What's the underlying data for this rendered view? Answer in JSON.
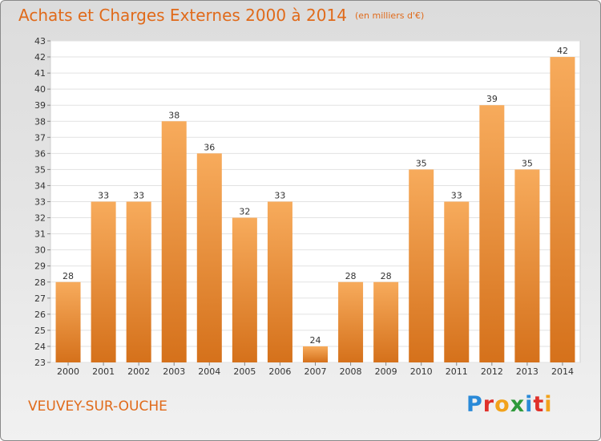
{
  "header": {
    "title": "Achats et Charges Externes 2000 à 2014",
    "unit": "(en milliers d'€)"
  },
  "place": "VEUVEY-SUR-OUCHE",
  "logo": {
    "text": "Proxiti",
    "colors": [
      "#2a8ad8",
      "#e0302a",
      "#f2a21b",
      "#2e9a3a",
      "#2a8ad8",
      "#e0302a",
      "#f2a21b"
    ]
  },
  "colors": {
    "accent": "#e06a1a",
    "bar_light": "#f6a95a",
    "bar_dark": "#d7731c"
  },
  "chart_data": {
    "type": "bar",
    "title": "Achats et Charges Externes 2000 à 2014",
    "subtitle": "(en milliers d'€)",
    "categories": [
      "2000",
      "2001",
      "2002",
      "2003",
      "2004",
      "2005",
      "2006",
      "2007",
      "2008",
      "2009",
      "2010",
      "2011",
      "2012",
      "2013",
      "2014"
    ],
    "values": [
      28,
      33,
      33,
      38,
      36,
      32,
      33,
      24,
      28,
      28,
      35,
      33,
      39,
      35,
      42
    ],
    "ylim": [
      23,
      43
    ],
    "yticks": [
      23,
      24,
      25,
      26,
      27,
      28,
      29,
      30,
      31,
      32,
      33,
      34,
      35,
      36,
      37,
      38,
      39,
      40,
      41,
      42,
      43
    ],
    "grid": true,
    "data_labels": true,
    "xlabel": "",
    "ylabel": ""
  }
}
